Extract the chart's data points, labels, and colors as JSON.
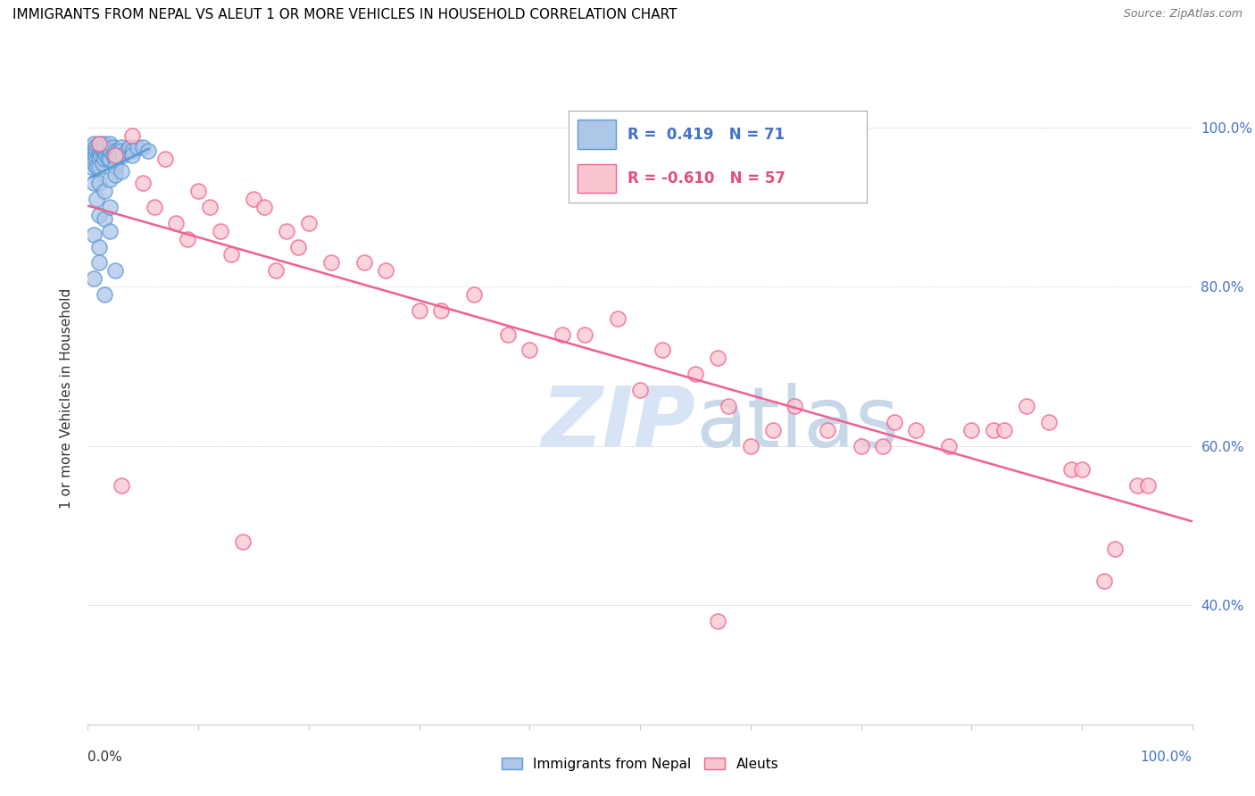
{
  "title": "IMMIGRANTS FROM NEPAL VS ALEUT 1 OR MORE VEHICLES IN HOUSEHOLD CORRELATION CHART",
  "source": "Source: ZipAtlas.com",
  "ylabel": "1 or more Vehicles in Household",
  "nepal_color": "#aec6e8",
  "nepal_edge_color": "#5b9bd5",
  "aleut_color": "#f9c6d0",
  "aleut_edge_color": "#f06090",
  "nepal_line_color": "#5b9bd5",
  "aleut_line_color": "#f06090",
  "background_color": "#ffffff",
  "watermark_color": "#d6e4f5",
  "nepal_r": 0.419,
  "nepal_n": 71,
  "aleut_r": -0.61,
  "aleut_n": 57,
  "xlim": [
    0,
    100
  ],
  "ylim": [
    25,
    107
  ],
  "yticks": [
    40,
    60,
    80,
    100
  ],
  "nepal_points": [
    [
      0.2,
      97.0
    ],
    [
      0.3,
      96.5
    ],
    [
      0.3,
      95.0
    ],
    [
      0.4,
      97.5
    ],
    [
      0.4,
      96.0
    ],
    [
      0.5,
      98.0
    ],
    [
      0.5,
      97.0
    ],
    [
      0.5,
      95.5
    ],
    [
      0.6,
      97.0
    ],
    [
      0.6,
      96.0
    ],
    [
      0.7,
      97.5
    ],
    [
      0.7,
      96.5
    ],
    [
      0.8,
      97.0
    ],
    [
      0.8,
      95.0
    ],
    [
      0.9,
      96.5
    ],
    [
      1.0,
      98.0
    ],
    [
      1.0,
      97.0
    ],
    [
      1.0,
      96.0
    ],
    [
      1.0,
      95.0
    ],
    [
      1.1,
      97.0
    ],
    [
      1.2,
      97.5
    ],
    [
      1.2,
      96.5
    ],
    [
      1.3,
      97.0
    ],
    [
      1.3,
      95.5
    ],
    [
      1.4,
      97.0
    ],
    [
      1.5,
      98.0
    ],
    [
      1.5,
      97.0
    ],
    [
      1.5,
      96.0
    ],
    [
      1.6,
      97.5
    ],
    [
      1.7,
      96.5
    ],
    [
      1.8,
      97.0
    ],
    [
      1.8,
      96.0
    ],
    [
      1.9,
      97.5
    ],
    [
      2.0,
      98.0
    ],
    [
      2.0,
      97.0
    ],
    [
      2.0,
      96.0
    ],
    [
      2.1,
      97.0
    ],
    [
      2.2,
      97.5
    ],
    [
      2.3,
      96.5
    ],
    [
      2.5,
      97.0
    ],
    [
      2.5,
      96.0
    ],
    [
      2.5,
      95.0
    ],
    [
      2.7,
      97.0
    ],
    [
      2.8,
      96.5
    ],
    [
      3.0,
      97.5
    ],
    [
      3.0,
      97.0
    ],
    [
      3.2,
      96.5
    ],
    [
      3.5,
      97.0
    ],
    [
      3.8,
      97.5
    ],
    [
      4.0,
      97.0
    ],
    [
      4.0,
      96.5
    ],
    [
      4.5,
      97.5
    ],
    [
      5.0,
      97.5
    ],
    [
      5.5,
      97.0
    ],
    [
      0.5,
      93.0
    ],
    [
      0.8,
      91.0
    ],
    [
      1.0,
      93.0
    ],
    [
      1.5,
      92.0
    ],
    [
      2.0,
      93.5
    ],
    [
      2.5,
      94.0
    ],
    [
      3.0,
      94.5
    ],
    [
      1.0,
      89.0
    ],
    [
      1.5,
      88.5
    ],
    [
      2.0,
      90.0
    ],
    [
      0.5,
      86.5
    ],
    [
      1.0,
      85.0
    ],
    [
      2.0,
      87.0
    ],
    [
      1.0,
      83.0
    ],
    [
      0.5,
      81.0
    ],
    [
      2.5,
      82.0
    ],
    [
      1.5,
      79.0
    ]
  ],
  "aleut_points": [
    [
      1.0,
      98.0
    ],
    [
      2.5,
      96.5
    ],
    [
      4.0,
      99.0
    ],
    [
      5.0,
      93.0
    ],
    [
      6.0,
      90.0
    ],
    [
      7.0,
      96.0
    ],
    [
      8.0,
      88.0
    ],
    [
      9.0,
      86.0
    ],
    [
      10.0,
      92.0
    ],
    [
      11.0,
      90.0
    ],
    [
      12.0,
      87.0
    ],
    [
      13.0,
      84.0
    ],
    [
      15.0,
      91.0
    ],
    [
      16.0,
      90.0
    ],
    [
      17.0,
      82.0
    ],
    [
      18.0,
      87.0
    ],
    [
      19.0,
      85.0
    ],
    [
      20.0,
      88.0
    ],
    [
      22.0,
      83.0
    ],
    [
      25.0,
      83.0
    ],
    [
      27.0,
      82.0
    ],
    [
      30.0,
      77.0
    ],
    [
      32.0,
      77.0
    ],
    [
      35.0,
      79.0
    ],
    [
      38.0,
      74.0
    ],
    [
      40.0,
      72.0
    ],
    [
      43.0,
      74.0
    ],
    [
      45.0,
      74.0
    ],
    [
      48.0,
      76.0
    ],
    [
      50.0,
      67.0
    ],
    [
      52.0,
      72.0
    ],
    [
      55.0,
      69.0
    ],
    [
      57.0,
      71.0
    ],
    [
      58.0,
      65.0
    ],
    [
      60.0,
      60.0
    ],
    [
      62.0,
      62.0
    ],
    [
      64.0,
      65.0
    ],
    [
      67.0,
      62.0
    ],
    [
      70.0,
      60.0
    ],
    [
      72.0,
      60.0
    ],
    [
      73.0,
      63.0
    ],
    [
      75.0,
      62.0
    ],
    [
      78.0,
      60.0
    ],
    [
      80.0,
      62.0
    ],
    [
      82.0,
      62.0
    ],
    [
      83.0,
      62.0
    ],
    [
      85.0,
      65.0
    ],
    [
      87.0,
      63.0
    ],
    [
      89.0,
      57.0
    ],
    [
      90.0,
      57.0
    ],
    [
      92.0,
      43.0
    ],
    [
      93.0,
      47.0
    ],
    [
      95.0,
      55.0
    ],
    [
      96.0,
      55.0
    ],
    [
      3.0,
      55.0
    ],
    [
      14.0,
      48.0
    ],
    [
      57.0,
      38.0
    ]
  ],
  "aleut_line_x": [
    0,
    100
  ],
  "aleut_line_y_start": 96,
  "aleut_line_y_end": 55
}
